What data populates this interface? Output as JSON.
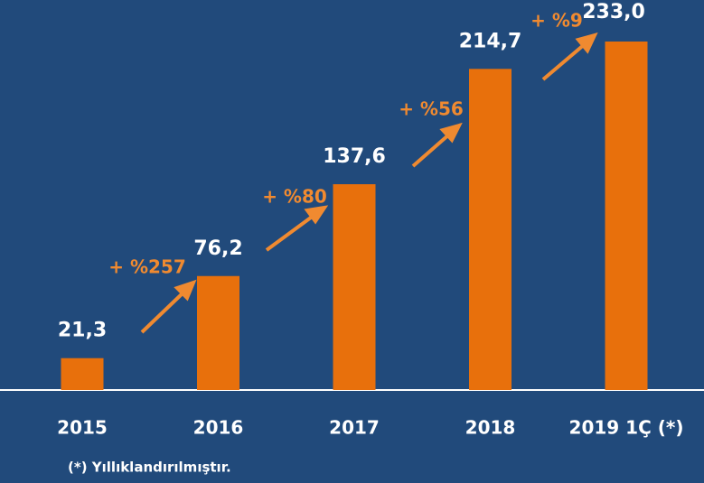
{
  "chart_data": {
    "type": "bar",
    "categories": [
      "2015",
      "2016",
      "2017",
      "2018",
      "2019 1Ç (*)"
    ],
    "values": [
      21.3,
      76.2,
      137.6,
      214.7,
      233.0
    ],
    "value_labels": [
      "21,3",
      "76,2",
      "137,6",
      "214,7",
      "233,0"
    ],
    "color": "#e8700c",
    "annotations": [
      "+ %257",
      "+ %80",
      "+ %56",
      "+ %9"
    ],
    "annotation_color": "#f08a30",
    "footnote": "(*) Yıllıklandırılmıştır."
  }
}
